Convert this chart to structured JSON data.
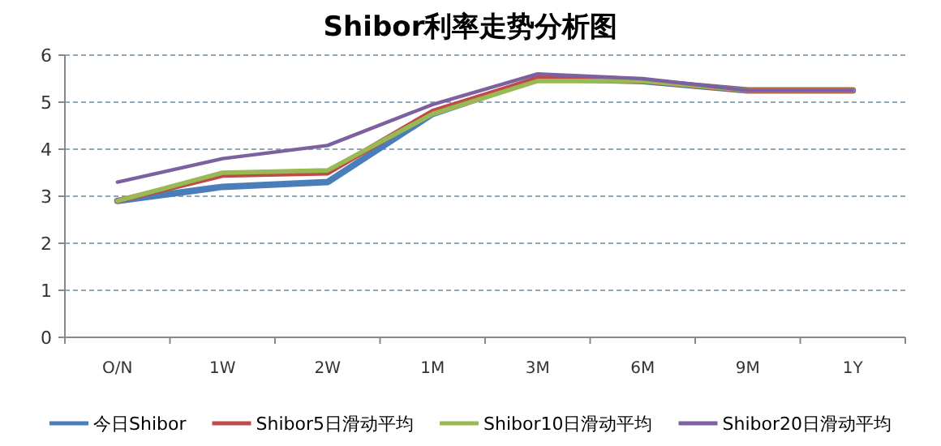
{
  "chart_data": {
    "type": "line",
    "title": "Shibor利率走势分析图",
    "categories": [
      "O/N",
      "1W",
      "2W",
      "1M",
      "3M",
      "6M",
      "9M",
      "1Y"
    ],
    "series": [
      {
        "name": "今日Shibor",
        "color": "#4a7ebb",
        "values": [
          2.9,
          3.2,
          3.3,
          4.75,
          5.5,
          5.45,
          5.25,
          5.25
        ]
      },
      {
        "name": "Shibor5日滑动平均",
        "color": "#be4b48",
        "values": [
          2.9,
          3.45,
          3.5,
          4.8,
          5.5,
          5.45,
          5.25,
          5.25
        ]
      },
      {
        "name": "Shibor10日滑动平均",
        "color": "#98b954",
        "values": [
          2.9,
          3.5,
          3.55,
          4.75,
          5.45,
          5.45,
          5.25,
          5.25
        ]
      },
      {
        "name": "Shibor20日滑动平均",
        "color": "#7d60a0",
        "values": [
          3.3,
          3.8,
          4.08,
          4.95,
          5.6,
          5.5,
          5.25,
          5.25
        ]
      }
    ],
    "ylim": [
      0,
      6
    ],
    "yticks": [
      0,
      1,
      2,
      3,
      4,
      5,
      6
    ],
    "grid": "y",
    "legend": "bottom",
    "marker": "none",
    "line_style": "solid"
  }
}
